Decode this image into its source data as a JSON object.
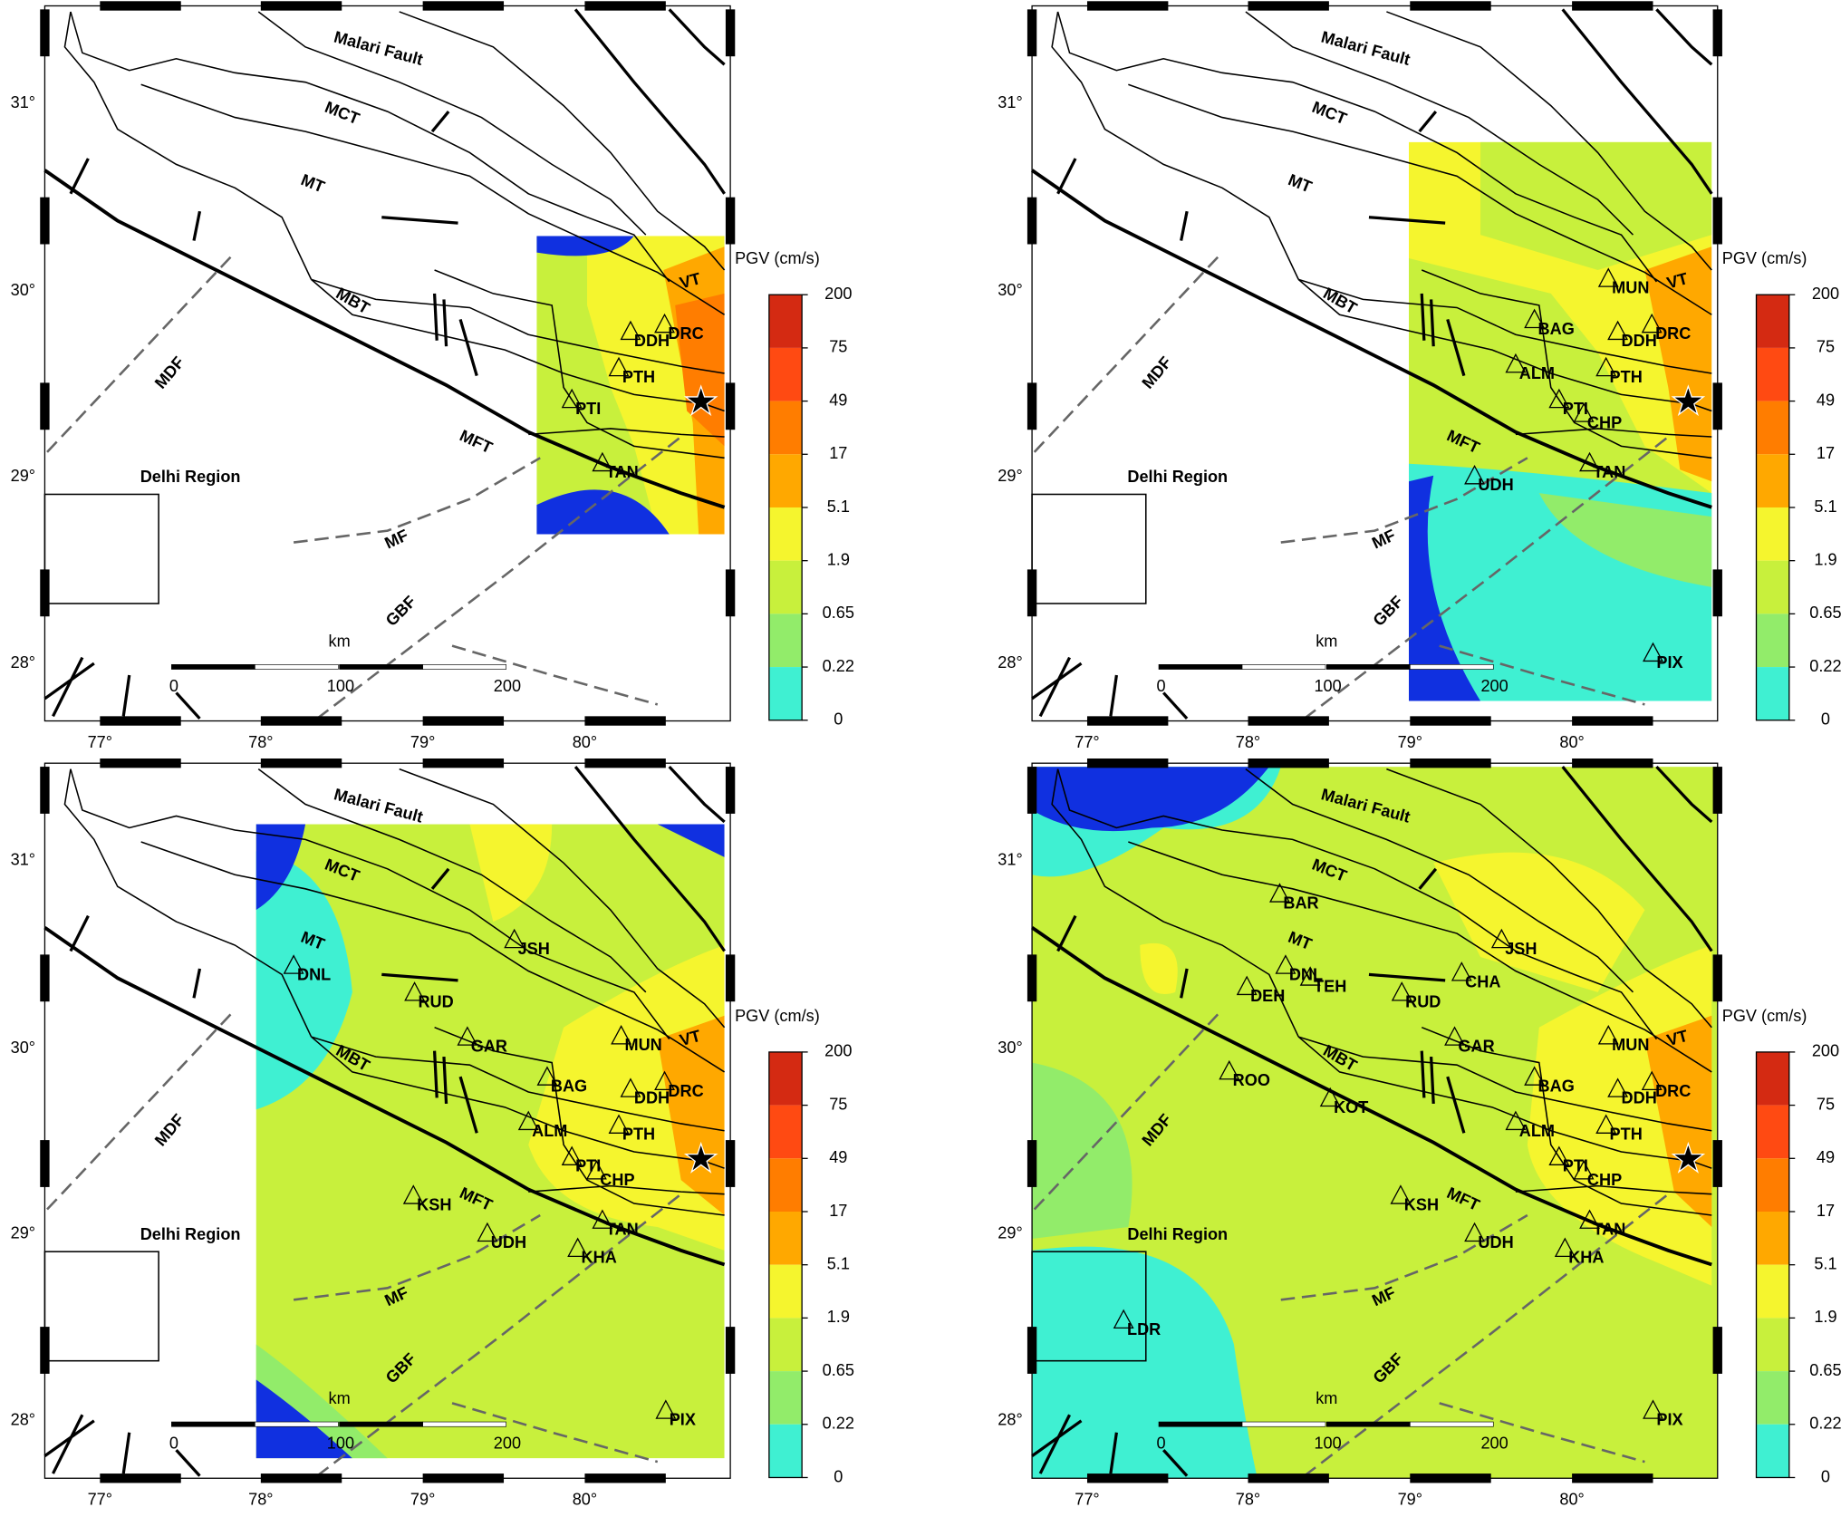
{
  "axes": {
    "lon_labels": [
      "77°",
      "78°",
      "79°",
      "80°"
    ],
    "lat_labels": [
      "31°",
      "30°",
      "29°",
      "28°"
    ]
  },
  "colorbar": {
    "title": "PGV (cm/s)",
    "labels": [
      200,
      75,
      49,
      17,
      5.1,
      1.9,
      0.65,
      0.22,
      0
    ],
    "colors": [
      "#d42a12",
      "#ff4a12",
      "#ff7d00",
      "#ffa800",
      "#f5f52e",
      "#c8f03c",
      "#92ec6a",
      "#3ff0d2"
    ]
  },
  "scale": {
    "unit": "km",
    "labels": [
      0,
      100,
      200
    ]
  },
  "region_label": "Delhi Region",
  "faults": [
    "Malari Fault",
    "MCT",
    "MT",
    "MBT",
    "VT",
    "MDF",
    "MFT",
    "MF",
    "GBF"
  ],
  "panels": [
    {
      "stations": [
        "DRC",
        "DDH",
        "PTH",
        "PTI",
        "TAN"
      ]
    },
    {
      "stations": [
        "MUN",
        "DRC",
        "BAG",
        "DDH",
        "ALM",
        "PTH",
        "PTI",
        "CHP",
        "TAN",
        "UDH",
        "PIX"
      ]
    },
    {
      "stations": [
        "JSH",
        "DNL",
        "RUD",
        "GAR",
        "MUN",
        "DRC",
        "BAG",
        "DDH",
        "ALM",
        "PTH",
        "PTI",
        "CHP",
        "KSH",
        "UDH",
        "TAN",
        "KHA",
        "PIX"
      ]
    },
    {
      "stations": [
        "BAR",
        "JSH",
        "DNL",
        "TEH",
        "CHA",
        "DEH",
        "RUD",
        "GAR",
        "MUN",
        "ROO",
        "KOT",
        "BAG",
        "DDH",
        "DRC",
        "ALM",
        "PTH",
        "PTI",
        "CHP",
        "KSH",
        "UDH",
        "TAN",
        "KHA",
        "LDR",
        "PIX"
      ]
    }
  ]
}
